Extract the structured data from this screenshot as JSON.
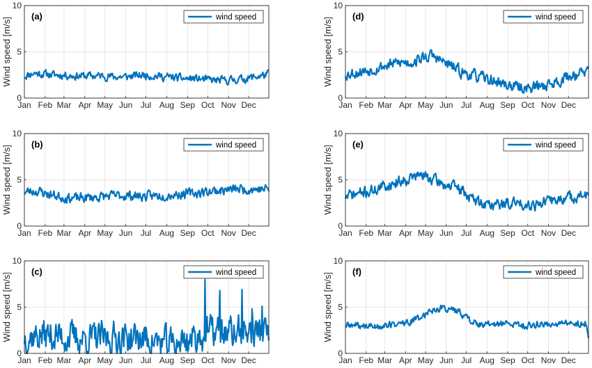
{
  "colors": {
    "line": "#0072BD",
    "grid": "#e0e0e0",
    "axis": "#262626"
  },
  "months": [
    "Jan",
    "Feb",
    "Mar",
    "Apr",
    "May",
    "Jun",
    "Jul",
    "Aug",
    "Sep",
    "Oct",
    "Nov",
    "Dec"
  ],
  "chart_data": [
    {
      "type": "line",
      "panel_label": "(a)",
      "ylabel": "Wind speed [m/s]",
      "ylim": [
        0,
        10
      ],
      "yticks": [
        0,
        5,
        10
      ],
      "xlim": [
        1,
        365
      ],
      "grid": true,
      "legend": "top-right",
      "series": [
        {
          "name": "wind speed",
          "keypoints": [
            [
              1,
              2.4
            ],
            [
              15,
              2.7
            ],
            [
              30,
              2.6
            ],
            [
              45,
              2.5
            ],
            [
              60,
              2.5
            ],
            [
              75,
              2.4
            ],
            [
              90,
              2.4
            ],
            [
              105,
              2.4
            ],
            [
              120,
              2.4
            ],
            [
              135,
              2.3
            ],
            [
              150,
              2.3
            ],
            [
              165,
              2.4
            ],
            [
              180,
              2.5
            ],
            [
              195,
              2.4
            ],
            [
              210,
              2.3
            ],
            [
              225,
              2.2
            ],
            [
              240,
              2.1
            ],
            [
              255,
              2.1
            ],
            [
              270,
              2.0
            ],
            [
              285,
              1.9
            ],
            [
              300,
              1.9
            ],
            [
              315,
              2.0
            ],
            [
              330,
              2.1
            ],
            [
              345,
              2.3
            ],
            [
              360,
              2.5
            ],
            [
              365,
              2.6
            ]
          ],
          "noise": 0.9,
          "seed": 11
        }
      ]
    },
    {
      "type": "line",
      "panel_label": "(b)",
      "ylabel": "Wind speed [m/s]",
      "ylim": [
        0,
        10
      ],
      "yticks": [
        0,
        5,
        10
      ],
      "xlim": [
        1,
        365
      ],
      "grid": true,
      "legend": "top-right",
      "series": [
        {
          "name": "wind speed",
          "keypoints": [
            [
              1,
              3.7
            ],
            [
              20,
              3.8
            ],
            [
              40,
              3.4
            ],
            [
              60,
              3.1
            ],
            [
              80,
              3.0
            ],
            [
              100,
              3.1
            ],
            [
              120,
              3.2
            ],
            [
              140,
              3.3
            ],
            [
              160,
              3.3
            ],
            [
              180,
              3.2
            ],
            [
              200,
              3.3
            ],
            [
              220,
              3.4
            ],
            [
              240,
              3.5
            ],
            [
              260,
              3.6
            ],
            [
              280,
              3.8
            ],
            [
              300,
              3.9
            ],
            [
              320,
              4.0
            ],
            [
              340,
              4.0
            ],
            [
              365,
              4.0
            ]
          ],
          "noise": 1.1,
          "seed": 23
        }
      ]
    },
    {
      "type": "line",
      "panel_label": "(c)",
      "ylabel": "Wind speed [m/s]",
      "ylim": [
        0,
        10
      ],
      "yticks": [
        0,
        5,
        10
      ],
      "xlim": [
        1,
        365
      ],
      "grid": true,
      "legend": "top-right",
      "series": [
        {
          "name": "wind speed",
          "keypoints": [
            [
              1,
              1.8
            ],
            [
              30,
              2.0
            ],
            [
              60,
              1.8
            ],
            [
              90,
              1.6
            ],
            [
              120,
              1.6
            ],
            [
              150,
              1.7
            ],
            [
              180,
              1.6
            ],
            [
              200,
              1.2
            ],
            [
              220,
              1.0
            ],
            [
              250,
              1.6
            ],
            [
              280,
              2.4
            ],
            [
              310,
              2.2
            ],
            [
              340,
              2.4
            ],
            [
              365,
              2.2
            ]
          ],
          "noise": 3.6,
          "seed": 37,
          "spikes": [
            [
              270,
              8.0
            ],
            [
              292,
              6.8
            ],
            [
              325,
              6.9
            ],
            [
              340,
              4.8
            ],
            [
              355,
              5.1
            ]
          ]
        }
      ]
    },
    {
      "type": "line",
      "panel_label": "(d)",
      "ylabel": "Wind speed [m/s]",
      "ylim": [
        0,
        10
      ],
      "yticks": [
        0,
        5,
        10
      ],
      "xlim": [
        1,
        365
      ],
      "grid": true,
      "legend": "top-right",
      "series": [
        {
          "name": "wind speed",
          "keypoints": [
            [
              1,
              2.6
            ],
            [
              20,
              2.8
            ],
            [
              40,
              3.1
            ],
            [
              60,
              3.5
            ],
            [
              80,
              3.8
            ],
            [
              100,
              3.9
            ],
            [
              120,
              4.4
            ],
            [
              130,
              4.6
            ],
            [
              145,
              4.0
            ],
            [
              160,
              3.4
            ],
            [
              175,
              2.8
            ],
            [
              190,
              2.5
            ],
            [
              210,
              2.1
            ],
            [
              225,
              1.8
            ],
            [
              240,
              1.5
            ],
            [
              255,
              1.2
            ],
            [
              270,
              1.1
            ],
            [
              285,
              1.2
            ],
            [
              300,
              1.4
            ],
            [
              315,
              1.7
            ],
            [
              330,
              2.2
            ],
            [
              345,
              2.6
            ],
            [
              365,
              2.8
            ]
          ],
          "noise": 1.3,
          "seed": 53
        }
      ]
    },
    {
      "type": "line",
      "panel_label": "(e)",
      "ylabel": "Wind speed [m/s]",
      "ylim": [
        0,
        10
      ],
      "yticks": [
        0,
        5,
        10
      ],
      "xlim": [
        1,
        365
      ],
      "grid": true,
      "legend": "top-right",
      "series": [
        {
          "name": "wind speed",
          "keypoints": [
            [
              1,
              3.2
            ],
            [
              20,
              3.5
            ],
            [
              40,
              3.8
            ],
            [
              60,
              4.3
            ],
            [
              80,
              4.8
            ],
            [
              100,
              5.3
            ],
            [
              115,
              5.5
            ],
            [
              130,
              5.1
            ],
            [
              145,
              4.6
            ],
            [
              160,
              4.3
            ],
            [
              175,
              3.9
            ],
            [
              185,
              3.3
            ],
            [
              195,
              2.7
            ],
            [
              210,
              2.4
            ],
            [
              225,
              2.3
            ],
            [
              240,
              2.4
            ],
            [
              255,
              2.5
            ],
            [
              270,
              2.4
            ],
            [
              285,
              2.4
            ],
            [
              300,
              2.6
            ],
            [
              315,
              2.8
            ],
            [
              330,
              3.0
            ],
            [
              345,
              3.2
            ],
            [
              365,
              3.3
            ]
          ],
          "noise": 1.3,
          "seed": 71
        }
      ]
    },
    {
      "type": "line",
      "panel_label": "(f)",
      "ylabel": "Wind speed [m/s]",
      "ylim": [
        0,
        10
      ],
      "yticks": [
        0,
        5,
        10
      ],
      "xlim": [
        1,
        365
      ],
      "grid": true,
      "legend": "top-right",
      "series": [
        {
          "name": "wind speed",
          "keypoints": [
            [
              1,
              3.0
            ],
            [
              20,
              3.0
            ],
            [
              40,
              2.9
            ],
            [
              60,
              3.0
            ],
            [
              80,
              3.2
            ],
            [
              100,
              3.4
            ],
            [
              115,
              4.0
            ],
            [
              130,
              4.7
            ],
            [
              145,
              4.9
            ],
            [
              160,
              4.8
            ],
            [
              175,
              4.3
            ],
            [
              190,
              3.5
            ],
            [
              205,
              3.0
            ],
            [
              220,
              3.1
            ],
            [
              240,
              3.2
            ],
            [
              255,
              3.1
            ],
            [
              270,
              3.0
            ],
            [
              285,
              3.1
            ],
            [
              300,
              3.2
            ],
            [
              315,
              3.2
            ],
            [
              330,
              3.2
            ],
            [
              345,
              3.2
            ],
            [
              360,
              3.3
            ],
            [
              365,
              1.8
            ]
          ],
          "noise": 0.8,
          "seed": 89
        }
      ]
    }
  ]
}
